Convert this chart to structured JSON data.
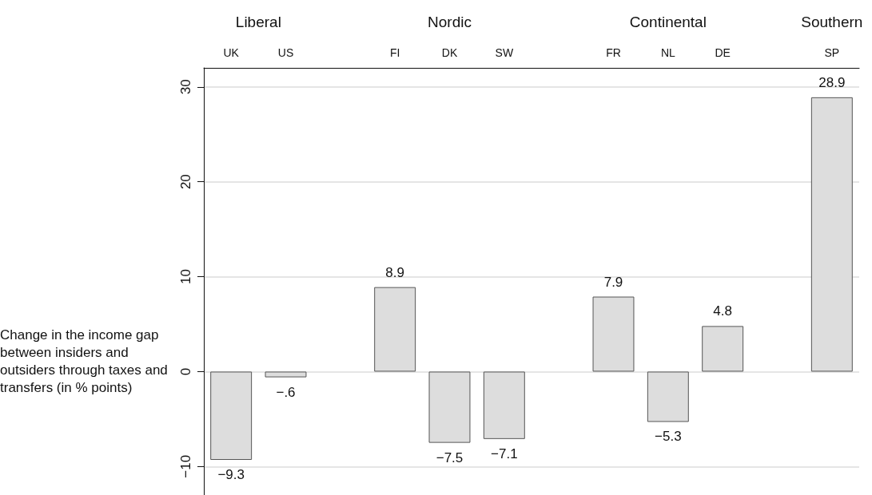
{
  "chart_data": {
    "type": "bar",
    "ylabel": "Change in the income gap between insiders and outsiders through taxes and transfers (in % points)",
    "categories": [
      "UK",
      "US",
      null,
      "FI",
      "DK",
      "SW",
      null,
      "FR",
      "NL",
      "DE",
      null,
      "SP"
    ],
    "values": [
      -9.3,
      -0.6,
      null,
      8.9,
      -7.5,
      -7.1,
      null,
      7.9,
      -5.3,
      4.8,
      null,
      28.9
    ],
    "value_labels": [
      "−9.3",
      "−.6",
      null,
      "8.9",
      "−7.5",
      "−7.1",
      null,
      "7.9",
      "−5.3",
      "4.8",
      null,
      "28.9"
    ],
    "color": "#dddddd",
    "annotations": [
      "Liberal",
      "Nordic",
      "Continental",
      "Southern"
    ],
    "ylim": [
      -13,
      32
    ],
    "yticks": [
      {
        "value": -10,
        "label": "−10"
      },
      0,
      10,
      20,
      30
    ],
    "grid": "y"
  }
}
